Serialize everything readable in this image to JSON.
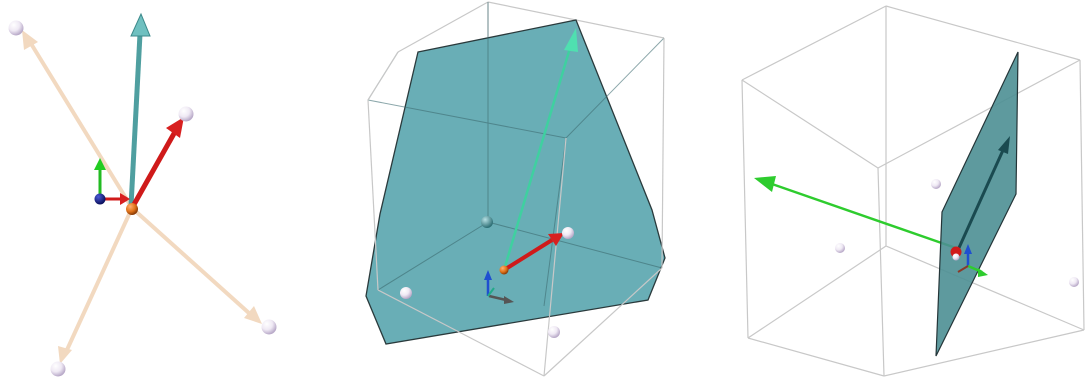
{
  "figure": {
    "panels": [
      {
        "name": "vectors-only-view"
      },
      {
        "name": "plane-in-bounding-box-view"
      },
      {
        "name": "plane-edge-on-view"
      }
    ]
  },
  "colors": {
    "background": "#ffffff",
    "plane_fill": "#5ea8b0",
    "plane_stroke": "#2a3a3c",
    "box_edge": "#c8c8c8",
    "vector_red": "#d01a1a",
    "vector_green": "#2ecc2e",
    "vector_teal": "#4f9fa0",
    "vector_pale": "#f0d4b8",
    "vector_dark_teal": "#1e5a60",
    "axis_x": "#d01a1a",
    "axis_y": "#22bb22",
    "axis_z": "#1f4fd0",
    "origin_point": "#e0731a",
    "sample_point": "#f0eef8"
  }
}
